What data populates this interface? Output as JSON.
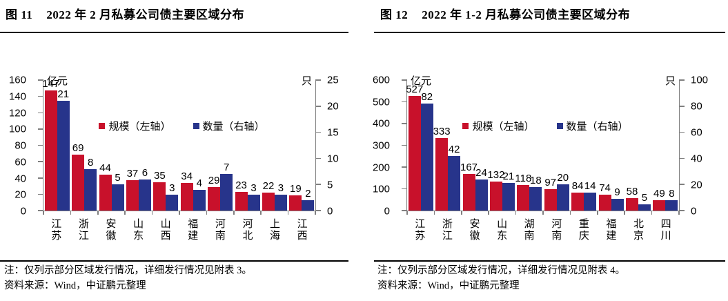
{
  "colors": {
    "scale_red": "#C8112B",
    "count_blue": "#27348B",
    "axis_gray": "#7F7F7F",
    "rule_black": "#000000"
  },
  "panels": [
    {
      "title_prefix": "图 11",
      "title_text": "2022 年 2 月私募公司债主要区域分布",
      "note": "注：仅列示部分区域发行情况，详细发行情况见附表 3。",
      "source": "资料来源：Wind，中证鹏元整理",
      "chart_data": {
        "type": "bar",
        "categories": [
          "江苏",
          "浙江",
          "安徽",
          "山东",
          "山西",
          "福建",
          "河南",
          "河北",
          "上海",
          "江西"
        ],
        "series": [
          {
            "name": "规模（左轴）",
            "axis": "left",
            "color": "#C8112B",
            "values": [
              147,
              69,
              44,
              37,
              35,
              34,
              29,
              23,
              22,
              19
            ]
          },
          {
            "name": "数量（右轴）",
            "axis": "right",
            "color": "#27348B",
            "values": [
              21,
              8,
              5,
              6,
              3,
              4,
              7,
              3,
              3,
              2
            ]
          }
        ],
        "left_axis": {
          "unit": "亿元",
          "min": 0,
          "max": 160,
          "step": 20
        },
        "right_axis": {
          "unit": "只",
          "min": 0,
          "max": 25,
          "step": 5
        },
        "legend_position": "top",
        "grid": false,
        "data_labels": true
      }
    },
    {
      "title_prefix": "图 12",
      "title_text": "2022 年 1-2 月私募公司债主要区域分布",
      "note": "注：仅列示部分区域发行情况，详细发行情况见附表 4。",
      "source": "资料来源：Wind，中证鹏元整理",
      "chart_data": {
        "type": "bar",
        "categories": [
          "江苏",
          "浙江",
          "安徽",
          "山东",
          "湖南",
          "河南",
          "重庆",
          "福建",
          "北京",
          "四川"
        ],
        "series": [
          {
            "name": "规模（左轴）",
            "axis": "left",
            "color": "#C8112B",
            "values": [
              527,
              333,
              167,
              132,
              118,
              97,
              84,
              74,
              58,
              49
            ]
          },
          {
            "name": "数量（右轴）",
            "axis": "right",
            "color": "#27348B",
            "values": [
              82,
              42,
              24,
              21,
              18,
              20,
              14,
              9,
              5,
              8
            ]
          }
        ],
        "left_axis": {
          "unit": "亿元",
          "min": 0,
          "max": 600,
          "step": 100
        },
        "right_axis": {
          "unit": "只",
          "min": 0,
          "max": 100,
          "step": 20
        },
        "legend_position": "top",
        "grid": false,
        "data_labels": true
      }
    }
  ]
}
